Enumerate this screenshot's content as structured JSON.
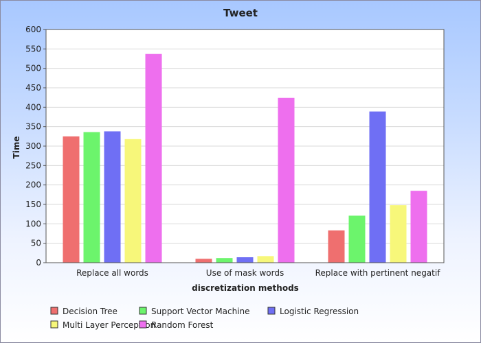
{
  "chart_data": {
    "type": "bar",
    "title": "Tweet",
    "xlabel": "discretization methods",
    "ylabel": "Time",
    "ylim": [
      0,
      600
    ],
    "yticks": [
      0,
      50,
      100,
      150,
      200,
      250,
      300,
      350,
      400,
      450,
      500,
      550,
      600
    ],
    "categories": [
      "Replace all words",
      "Use of mask words",
      "Replace with pertinent negatif"
    ],
    "series": [
      {
        "name": "Decision Tree",
        "color": "#ef6f6f",
        "values": [
          325,
          10,
          83
        ]
      },
      {
        "name": "Support Vector Machine",
        "color": "#6cf46c",
        "values": [
          336,
          12,
          121
        ]
      },
      {
        "name": "Logistic Regression",
        "color": "#6f6ff4",
        "values": [
          338,
          14,
          389
        ]
      },
      {
        "name": "Multi Layer Perceptron",
        "color": "#f7f77a",
        "values": [
          318,
          17,
          148
        ]
      },
      {
        "name": "Random Forest",
        "color": "#ee6fee",
        "values": [
          537,
          424,
          185
        ]
      }
    ],
    "grid": true,
    "legend": "bottom"
  }
}
